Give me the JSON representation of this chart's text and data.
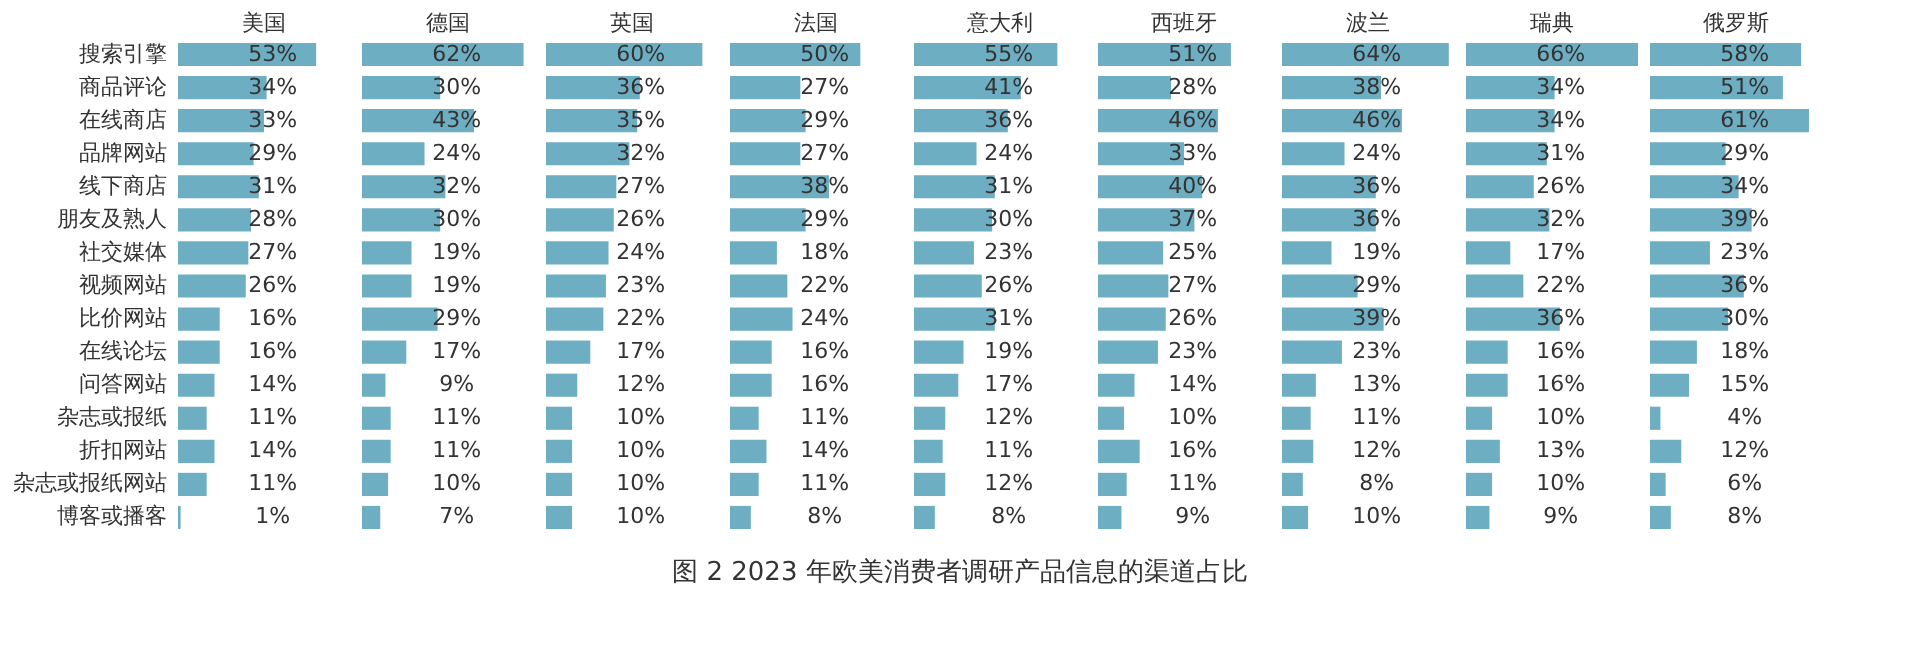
{
  "chart_data": [
    {
      "type": "bar",
      "orientation": "horizontal",
      "title": "美国",
      "tick_labels": "y",
      "annotations": [
        "图 2  2023 年欧美消费者调研产品信息的渠道占比"
      ],
      "categories": [
        "搜索引擎",
        "商品评论",
        "在线商店",
        "品牌网站",
        "线下商店",
        "朋友及熟人",
        "社交媒体",
        "视频网站",
        "比价网站",
        "在线论坛",
        "问答网站",
        "杂志或报纸",
        "折扣网站",
        "杂志或报纸网站",
        "博客或播客"
      ],
      "color": "#6eaec3",
      "values": [
        53,
        34,
        33,
        29,
        31,
        28,
        27,
        26,
        16,
        16,
        14,
        11,
        14,
        11,
        1
      ],
      "value_labels": [
        "53%",
        "34%",
        "33%",
        "29%",
        "31%",
        "28%",
        "27%",
        "26%",
        "16%",
        "16%",
        "14%",
        "11%",
        "14%",
        "11%",
        "1%"
      ]
    },
    {
      "type": "bar",
      "orientation": "horizontal",
      "title": "德国",
      "categories": [
        null,
        null,
        null,
        null,
        null,
        null,
        null,
        null,
        null,
        null,
        null,
        null,
        null,
        null,
        null
      ],
      "color": "#6eaec3",
      "values": [
        62,
        30,
        43,
        24,
        32,
        30,
        19,
        19,
        29,
        17,
        9,
        11,
        11,
        10,
        7
      ],
      "value_labels": [
        "62%",
        "30%",
        "43%",
        "24%",
        "32%",
        "30%",
        "19%",
        "19%",
        "29%",
        "17%",
        "9%",
        "11%",
        "11%",
        "10%",
        "7%"
      ]
    },
    {
      "type": "bar",
      "orientation": "horizontal",
      "title": "英国",
      "categories": [
        null,
        null,
        null,
        null,
        null,
        null,
        null,
        null,
        null,
        null,
        null,
        null,
        null,
        null,
        null
      ],
      "color": "#6eaec3",
      "values": [
        60,
        36,
        35,
        32,
        27,
        26,
        24,
        23,
        22,
        17,
        12,
        10,
        10,
        10,
        10
      ],
      "value_labels": [
        "60%",
        "36%",
        "35%",
        "32%",
        "27%",
        "26%",
        "24%",
        "23%",
        "22%",
        "17%",
        "12%",
        "10%",
        "10%",
        "10%",
        "10%"
      ]
    },
    {
      "type": "bar",
      "orientation": "horizontal",
      "title": "法国",
      "categories": [
        null,
        null,
        null,
        null,
        null,
        null,
        null,
        null,
        null,
        null,
        null,
        null,
        null,
        null,
        null
      ],
      "color": "#6eaec3",
      "values": [
        50,
        27,
        29,
        27,
        38,
        29,
        18,
        22,
        24,
        16,
        16,
        11,
        14,
        11,
        8
      ],
      "value_labels": [
        "50%",
        "27%",
        "29%",
        "27%",
        "38%",
        "29%",
        "18%",
        "22%",
        "24%",
        "16%",
        "16%",
        "11%",
        "14%",
        "11%",
        "8%"
      ]
    },
    {
      "type": "bar",
      "orientation": "horizontal",
      "title": "意大利",
      "categories": [
        null,
        null,
        null,
        null,
        null,
        null,
        null,
        null,
        null,
        null,
        null,
        null,
        null,
        null,
        null
      ],
      "color": "#6eaec3",
      "values": [
        55,
        41,
        36,
        24,
        31,
        30,
        23,
        26,
        31,
        19,
        17,
        12,
        11,
        12,
        8
      ],
      "value_labels": [
        "55%",
        "41%",
        "36%",
        "24%",
        "31%",
        "30%",
        "23%",
        "26%",
        "31%",
        "19%",
        "17%",
        "12%",
        "11%",
        "12%",
        "8%"
      ]
    },
    {
      "type": "bar",
      "orientation": "horizontal",
      "title": "西班牙",
      "categories": [
        null,
        null,
        null,
        null,
        null,
        null,
        null,
        null,
        null,
        null,
        null,
        null,
        null,
        null,
        null
      ],
      "color": "#6eaec3",
      "values": [
        51,
        28,
        46,
        33,
        40,
        37,
        25,
        27,
        26,
        23,
        14,
        10,
        16,
        11,
        9
      ],
      "value_labels": [
        "51%",
        "28%",
        "46%",
        "33%",
        "40%",
        "37%",
        "25%",
        "27%",
        "26%",
        "23%",
        "14%",
        "10%",
        "16%",
        "11%",
        "9%"
      ]
    },
    {
      "type": "bar",
      "orientation": "horizontal",
      "title": "波兰",
      "categories": [
        null,
        null,
        null,
        null,
        null,
        null,
        null,
        null,
        null,
        null,
        null,
        null,
        null,
        null,
        null
      ],
      "color": "#6eaec3",
      "values": [
        64,
        38,
        46,
        24,
        36,
        36,
        19,
        29,
        39,
        23,
        13,
        11,
        12,
        8,
        10
      ],
      "value_labels": [
        "64%",
        "38%",
        "46%",
        "24%",
        "36%",
        "36%",
        "19%",
        "29%",
        "39%",
        "23%",
        "13%",
        "11%",
        "12%",
        "8%",
        "10%"
      ]
    },
    {
      "type": "bar",
      "orientation": "horizontal",
      "title": "瑞典",
      "categories": [
        null,
        null,
        null,
        null,
        null,
        null,
        null,
        null,
        null,
        null,
        null,
        null,
        null,
        null,
        null
      ],
      "color": "#6eaec3",
      "values": [
        66,
        34,
        34,
        31,
        26,
        32,
        17,
        22,
        36,
        16,
        16,
        10,
        13,
        10,
        9
      ],
      "value_labels": [
        "66%",
        "34%",
        "34%",
        "31%",
        "26%",
        "32%",
        "17%",
        "22%",
        "36%",
        "16%",
        "16%",
        "10%",
        "13%",
        "10%",
        "9%"
      ]
    },
    {
      "type": "bar",
      "orientation": "horizontal",
      "title": "俄罗斯",
      "categories": [
        null,
        null,
        null,
        null,
        null,
        null,
        null,
        null,
        null,
        null,
        null,
        null,
        null,
        null,
        null
      ],
      "color": "#6eaec3",
      "values": [
        58,
        51,
        61,
        29,
        34,
        39,
        23,
        36,
        30,
        18,
        15,
        4,
        12,
        6,
        8
      ],
      "value_labels": [
        "58%",
        "51%",
        "61%",
        "29%",
        "34%",
        "39%",
        "23%",
        "36%",
        "30%",
        "18%",
        "15%",
        "4%",
        "12%",
        "6%",
        "8%"
      ]
    }
  ]
}
